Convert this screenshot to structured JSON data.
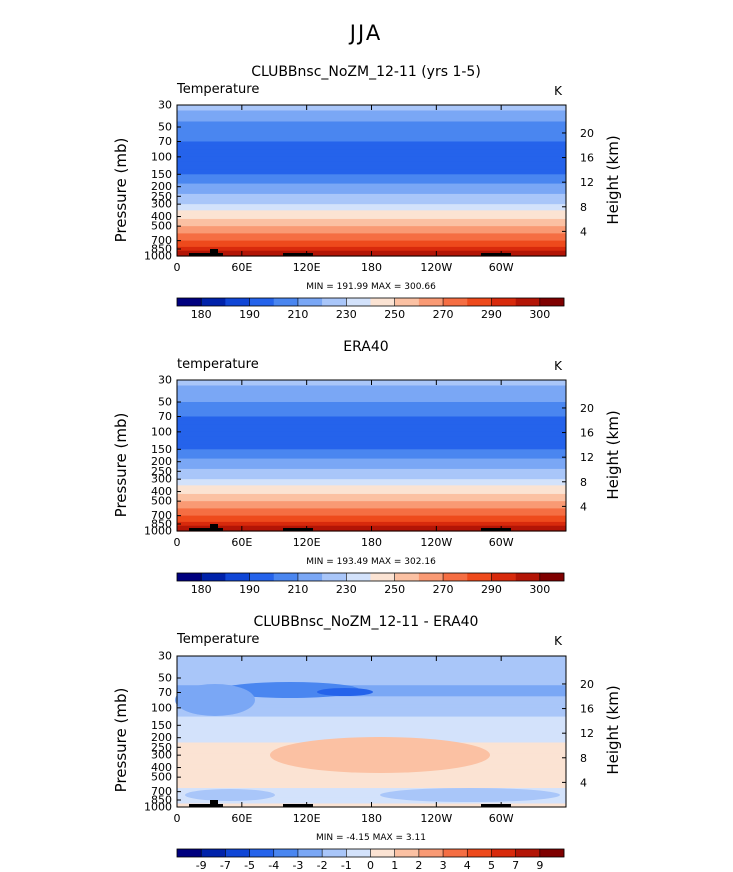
{
  "page_title": "JJA",
  "charts": [
    {
      "title": "CLUBBnsc_NoZM_12-11 (yrs 1-5)",
      "variable": "Temperature",
      "units": "K",
      "stats": "MIN = 191.99   MAX = 300.66"
    },
    {
      "title": "ERA40",
      "variable": "temperature",
      "units": "K",
      "stats": "MIN = 193.49   MAX = 302.16"
    },
    {
      "title": "CLUBBnsc_NoZM_12-11 - ERA40",
      "variable": "Temperature",
      "units": "K",
      "stats": "MIN =   -4.15   MAX =     3.11"
    }
  ],
  "axes": {
    "ylabel": "Pressure  (mb)",
    "y2label": "Height  (km)"
  },
  "colors": {
    "abs_scale": [
      "#00007f",
      "#0022aa",
      "#1046d6",
      "#2563eb",
      "#4a86f0",
      "#7aa7f5",
      "#a9c6f9",
      "#d3e2fb",
      "#fbe3d3",
      "#fbc1a3",
      "#f99a74",
      "#f56e43",
      "#ee4a1c",
      "#d82a0c",
      "#b31506",
      "#7f0000"
    ],
    "diff_scale": [
      "#00007f",
      "#0022aa",
      "#1046d6",
      "#2563eb",
      "#4a86f0",
      "#7aa7f5",
      "#a9c6f9",
      "#d3e2fb",
      "#fbe3d3",
      "#fbc1a3",
      "#f99a74",
      "#f56e43",
      "#ee4a1c",
      "#d82a0c",
      "#b31506",
      "#7f0000"
    ]
  },
  "chart_data": [
    {
      "type": "heatmap",
      "panel": "model",
      "title": "CLUBBnsc_NoZM_12-11 (yrs 1-5)",
      "xlabel": "",
      "ylabel": "Pressure  (mb)",
      "xticks": [
        "0",
        "60E",
        "120E",
        "180",
        "120W",
        "60W"
      ],
      "x_values": [
        0,
        60,
        120,
        180,
        240,
        300
      ],
      "xlim": [
        0,
        360
      ],
      "yticks": [
        "30",
        "50",
        "70",
        "100",
        "150",
        "200",
        "250",
        "300",
        "400",
        "500",
        "700",
        "850",
        "1000"
      ],
      "y_values": [
        30,
        50,
        70,
        100,
        150,
        200,
        250,
        300,
        400,
        500,
        700,
        850,
        1000
      ],
      "ylim": [
        1000,
        30
      ],
      "y2ticks": [
        "20",
        "16",
        "12",
        "8",
        "4"
      ],
      "y2_values": [
        20,
        16,
        12,
        8,
        4
      ],
      "profile_levels": [
        30,
        50,
        70,
        100,
        150,
        200,
        250,
        300,
        400,
        500,
        700,
        850,
        1000
      ],
      "profile_values": [
        226,
        214,
        207,
        200,
        208,
        218,
        226,
        232,
        246,
        256,
        272,
        285,
        296
      ],
      "colorbar_labels": [
        "180",
        "190",
        "210",
        "230",
        "250",
        "270",
        "290",
        "300"
      ],
      "min": 191.99,
      "max": 300.66
    },
    {
      "type": "heatmap",
      "panel": "obs",
      "title": "ERA40",
      "xlabel": "",
      "ylabel": "Pressure  (mb)",
      "xticks": [
        "0",
        "60E",
        "120E",
        "180",
        "120W",
        "60W"
      ],
      "x_values": [
        0,
        60,
        120,
        180,
        240,
        300
      ],
      "xlim": [
        0,
        360
      ],
      "yticks": [
        "30",
        "50",
        "70",
        "100",
        "150",
        "200",
        "250",
        "300",
        "400",
        "500",
        "700",
        "850",
        "1000"
      ],
      "y_values": [
        30,
        50,
        70,
        100,
        150,
        200,
        250,
        300,
        400,
        500,
        700,
        850,
        1000
      ],
      "ylim": [
        1000,
        30
      ],
      "y2ticks": [
        "20",
        "16",
        "12",
        "8",
        "4"
      ],
      "y2_values": [
        20,
        16,
        12,
        8,
        4
      ],
      "profile_levels": [
        30,
        50,
        70,
        100,
        150,
        200,
        250,
        300,
        400,
        500,
        700,
        850,
        1000
      ],
      "profile_values": [
        226,
        215,
        208,
        201,
        208,
        217,
        225,
        232,
        246,
        256,
        272,
        285,
        297
      ],
      "colorbar_labels": [
        "180",
        "190",
        "210",
        "230",
        "250",
        "270",
        "290",
        "300"
      ],
      "min": 193.49,
      "max": 302.16
    },
    {
      "type": "heatmap",
      "panel": "diff",
      "title": "CLUBBnsc_NoZM_12-11 - ERA40",
      "xlabel": "",
      "ylabel": "Pressure  (mb)",
      "xticks": [
        "0",
        "60E",
        "120E",
        "180",
        "120W",
        "60W"
      ],
      "x_values": [
        0,
        60,
        120,
        180,
        240,
        300
      ],
      "xlim": [
        0,
        360
      ],
      "yticks": [
        "30",
        "50",
        "70",
        "100",
        "150",
        "200",
        "250",
        "300",
        "400",
        "500",
        "700",
        "850",
        "1000"
      ],
      "y_values": [
        30,
        50,
        70,
        100,
        150,
        200,
        250,
        300,
        400,
        500,
        700,
        850,
        1000
      ],
      "ylim": [
        1000,
        30
      ],
      "y2ticks": [
        "20",
        "16",
        "12",
        "8",
        "4"
      ],
      "y2_values": [
        20,
        16,
        12,
        8,
        4
      ],
      "profile_levels": [
        30,
        50,
        70,
        100,
        150,
        200,
        250,
        300,
        400,
        500,
        700,
        850,
        1000
      ],
      "profile_values": [
        -1.2,
        -1.8,
        -2.3,
        -1.5,
        -0.6,
        -0.3,
        0.3,
        0.6,
        0.9,
        0.4,
        -0.2,
        -0.3,
        0.3
      ],
      "colorbar_labels": [
        "-9",
        "-7",
        "-5",
        "-4",
        "-3",
        "-2",
        "-1",
        "0",
        "1",
        "2",
        "3",
        "4",
        "5",
        "7",
        "9"
      ],
      "min": -4.15,
      "max": 3.11
    }
  ]
}
